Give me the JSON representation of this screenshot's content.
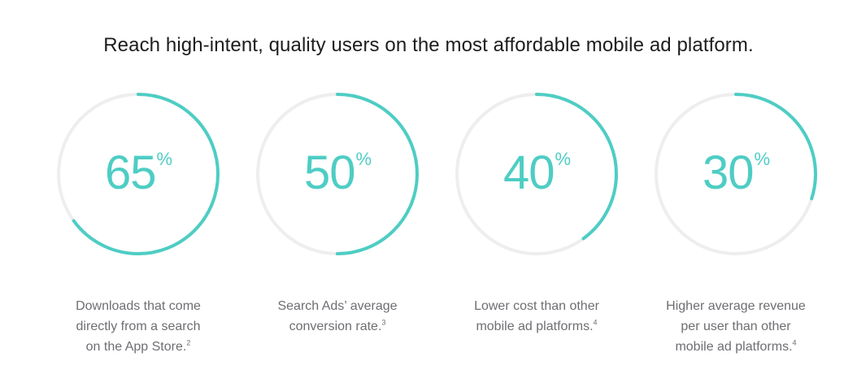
{
  "headline": "Reach high-intent, quality users on the most affordable mobile ad platform.",
  "colors": {
    "accent": "#4ecdc4",
    "track": "#eeeeee",
    "caption": "#6e6e73",
    "headline": "#1d1d1f"
  },
  "stats": [
    {
      "value": "65",
      "unit": "%",
      "percent": 65,
      "caption_lines": [
        "Downloads that come",
        "directly from a search",
        "on the App Store."
      ],
      "footnote": "2"
    },
    {
      "value": "50",
      "unit": "%",
      "percent": 50,
      "caption_lines": [
        "Search Ads’ average",
        "conversion rate."
      ],
      "footnote": "3"
    },
    {
      "value": "40",
      "unit": "%",
      "percent": 40,
      "caption_lines": [
        "Lower cost than other",
        "mobile ad platforms."
      ],
      "footnote": "4"
    },
    {
      "value": "30",
      "unit": "%",
      "percent": 30,
      "caption_lines": [
        "Higher average revenue",
        "per user than other",
        "mobile ad platforms."
      ],
      "footnote": "4"
    }
  ]
}
